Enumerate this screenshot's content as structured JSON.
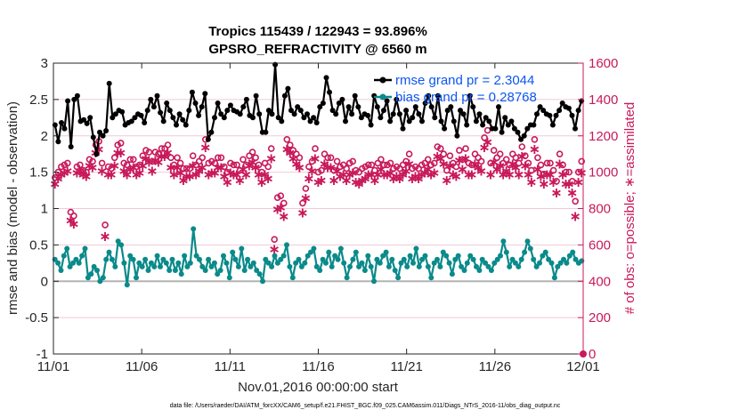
{
  "chart_data": {
    "type": "line",
    "title_line1": "Tropics 115439 / 122943 = 93.896%",
    "title_line2": "GPSRO_REFRACTIVITY @ 6560 m",
    "xlabel": "Nov.01,2016 00:00:00 start",
    "ylabel_left": "rmse and bias (model - observation)",
    "ylabel_right": "# of obs: o=possible; ∗=assimilated",
    "footnote": "data file: /Users/raeder/DAI/ATM_forcXX/CAM6_setup/f.e21.FHIST_BGC.f09_025.CAM6assim.011/Diags_NTrS_2016-11/obs_diag_output.nc",
    "xlim": [
      0,
      30
    ],
    "ylim_left": [
      -1,
      3
    ],
    "ylim_right": [
      0,
      1600
    ],
    "x_tick_labels": [
      {
        "x": 0,
        "label": "11/01"
      },
      {
        "x": 5,
        "label": "11/06"
      },
      {
        "x": 10,
        "label": "11/11"
      },
      {
        "x": 15,
        "label": "11/16"
      },
      {
        "x": 20,
        "label": "11/21"
      },
      {
        "x": 25,
        "label": "11/26"
      },
      {
        "x": 30,
        "label": "12/01"
      }
    ],
    "y_left_ticks": [
      "-1",
      "-0.5",
      "0",
      "0.5",
      "1",
      "1.5",
      "2",
      "2.5",
      "3"
    ],
    "y_right_ticks": [
      "0",
      "200",
      "400",
      "600",
      "800",
      "1000",
      "1200",
      "1400",
      "1600"
    ],
    "legend": [
      {
        "name": "rmse",
        "label": "rmse grand pr = 2.3044",
        "color": "#000000"
      },
      {
        "name": "bias",
        "label": "bias grand pr = 0.28768",
        "color": "#0a8a8a"
      }
    ],
    "series": [
      {
        "name": "rmse",
        "axis": "left",
        "color": "#000000",
        "values": [
          2.15,
          1.92,
          2.18,
          2.1,
          2.48,
          1.85,
          2.5,
          2.55,
          2.2,
          2.22,
          2.17,
          2.25,
          1.98,
          1.75,
          2.05,
          2.0,
          2.07,
          2.72,
          2.25,
          2.3,
          2.35,
          2.33,
          2.15,
          2.18,
          2.2,
          2.25,
          2.3,
          2.28,
          2.18,
          2.35,
          2.5,
          2.4,
          2.55,
          2.32,
          2.2,
          2.45,
          2.35,
          2.25,
          2.15,
          2.3,
          2.22,
          2.15,
          2.35,
          2.6,
          2.45,
          2.28,
          2.4,
          2.58,
          1.95,
          2.05,
          2.25,
          2.45,
          2.3,
          2.25,
          2.35,
          2.42,
          2.35,
          2.33,
          2.3,
          2.4,
          2.5,
          2.28,
          2.25,
          2.55,
          2.3,
          2.05,
          2.05,
          2.35,
          2.3,
          2.98,
          2.25,
          2.2,
          2.55,
          2.65,
          2.35,
          2.3,
          2.4,
          2.35,
          2.25,
          2.3,
          2.2,
          2.25,
          2.18,
          2.4,
          2.45,
          2.8,
          2.6,
          2.35,
          2.3,
          2.45,
          2.5,
          2.2,
          2.4,
          2.3,
          2.55,
          2.4,
          2.25,
          2.3,
          2.28,
          2.15,
          2.55,
          2.4,
          2.25,
          2.35,
          2.48,
          2.2,
          2.3,
          2.5,
          2.3,
          2.1,
          2.35,
          2.2,
          2.25,
          2.4,
          2.3,
          2.2,
          2.45,
          2.55,
          2.4,
          2.25,
          2.55,
          2.2,
          2.1,
          2.35,
          2.4,
          2.2,
          2.0,
          2.35,
          2.3,
          2.15,
          2.55,
          2.4,
          2.2,
          2.3,
          2.15,
          2.25,
          2.2,
          2.1,
          2.1,
          2.4,
          2.05,
          2.25,
          2.15,
          2.2,
          2.1,
          2.05,
          1.95,
          2.0,
          2.1,
          2.15,
          2.15,
          2.3,
          2.4,
          2.35,
          2.3,
          2.28,
          2.15,
          2.28,
          2.35,
          2.45,
          2.4,
          2.38,
          2.28,
          2.1,
          2.35,
          2.48
        ]
      },
      {
        "name": "bias",
        "axis": "left",
        "color": "#0a8a8a",
        "values": [
          0.3,
          0.25,
          0.15,
          0.35,
          0.45,
          0.2,
          0.25,
          0.3,
          0.25,
          0.35,
          0.45,
          0.05,
          0.1,
          0.2,
          0.15,
          0.0,
          0.05,
          0.3,
          0.4,
          0.3,
          0.2,
          0.55,
          0.5,
          0.25,
          -0.05,
          0.35,
          0.3,
          0.05,
          0.25,
          0.2,
          0.3,
          0.15,
          0.25,
          0.2,
          0.35,
          0.2,
          0.3,
          0.25,
          0.15,
          0.3,
          0.15,
          0.25,
          0.1,
          0.35,
          0.2,
          0.25,
          0.72,
          0.35,
          0.3,
          0.2,
          0.15,
          0.3,
          0.2,
          0.25,
          0.1,
          0.15,
          0.35,
          0.25,
          0.05,
          0.4,
          0.3,
          0.2,
          0.45,
          0.15,
          0.3,
          0.2,
          0.25,
          0.15,
          0.1,
          0.0,
          0.3,
          0.25,
          0.2,
          0.35,
          0.25,
          0.3,
          0.35,
          0.5,
          0.2,
          0.05,
          0.25,
          0.3,
          0.2,
          0.25,
          0.35,
          0.4,
          0.45,
          0.2,
          0.15,
          0.3,
          0.25,
          0.4,
          0.2,
          0.35,
          0.3,
          0.45,
          0.25,
          0.05,
          0.2,
          0.3,
          0.4,
          0.2,
          0.25,
          0.15,
          0.35,
          0.2,
          0.0,
          0.3,
          0.25,
          0.35,
          0.4,
          0.2,
          0.3,
          0.15,
          0.05,
          0.25,
          0.3,
          0.2,
          0.35,
          0.25,
          0.45,
          0.2,
          0.3,
          0.35,
          0.2,
          0.05,
          0.25,
          0.3,
          0.2,
          0.4,
          0.35,
          0.25,
          0.1,
          0.3,
          0.35,
          0.2,
          0.15,
          0.25,
          0.35,
          0.3,
          0.2,
          0.15,
          0.3,
          0.25,
          0.2,
          0.15,
          0.25,
          0.3,
          0.35,
          0.55,
          0.4,
          0.2,
          0.3,
          0.25,
          0.2,
          0.3,
          0.4,
          0.55,
          0.45,
          0.3,
          0.2,
          0.25,
          0.35,
          0.4,
          0.3,
          0.25,
          0.05,
          0.2,
          0.25,
          0.3,
          0.25,
          0.35,
          0.4,
          0.3,
          0.25,
          0.28
        ]
      },
      {
        "name": "obs_possible",
        "axis": "right",
        "marker": "o",
        "color": "#c8195a",
        "values": [
          970,
          1000,
          1030,
          1040,
          1050,
          780,
          760,
          1030,
          1040,
          1010,
          1000,
          1070,
          1060,
          1150,
          1170,
          1050,
          710,
          1030,
          1020,
          1080,
          1150,
          1160,
          1050,
          1040,
          1070,
          1070,
          1030,
          1040,
          1090,
          1120,
          1110,
          1060,
          1110,
          1100,
          1130,
          1130,
          1150,
          1080,
          1040,
          1080,
          1050,
          1020,
          1020,
          1020,
          1090,
          1040,
          1060,
          1080,
          1180,
          1050,
          1060,
          1050,
          1080,
          1080,
          1030,
          1000,
          1050,
          1040,
          1040,
          1010,
          1070,
          1040,
          1090,
          1110,
          1080,
          1040,
          1000,
          1050,
          1030,
          1130,
          630,
          860,
          870,
          830,
          1180,
          1150,
          1120,
          1100,
          1080,
          830,
          910,
          1030,
          1060,
          1130,
          1000,
          1010,
          1100,
          1080,
          1080,
          1010,
          1060,
          1030,
          1040,
          1020,
          1050,
          1060,
          1010,
          1000,
          1020,
          1030,
          1040,
          1040,
          1010,
          1050,
          1070,
          1040,
          1040,
          1050,
          1020,
          1030,
          1020,
          1040,
          1060,
          1100,
          1020,
          1030,
          1020,
          1040,
          1050,
          1070,
          1040,
          1050,
          1140,
          1130,
          1100,
          1010,
          1090,
          1050,
          1030,
          1120,
          1070,
          1130,
          1050,
          1040,
          1100,
          1080,
          1060,
          1190,
          1230,
          1050,
          1120,
          1080,
          1100,
          1050,
          1070,
          1040,
          1100,
          1080,
          1050,
          1140,
          1090,
          1050,
          1010,
          1180,
          1080,
          1040,
          990,
          1050,
          1050,
          1010,
          950,
          1100,
          1040,
          1000,
          1000,
          950,
          840,
          1000,
          1060
        ]
      },
      {
        "name": "obs_assimilated",
        "axis": "right",
        "marker": "*",
        "color": "#c8195a",
        "values": [
          940,
          970,
          990,
          1000,
          1010,
          740,
          720,
          1000,
          1010,
          990,
          980,
          1040,
          1030,
          1110,
          1130,
          1010,
          650,
          990,
          990,
          1040,
          1110,
          1110,
          1010,
          990,
          1020,
          1030,
          990,
          1000,
          1040,
          1080,
          1060,
          1010,
          1070,
          1060,
          1090,
          1090,
          1110,
          1030,
          990,
          1030,
          1000,
          960,
          980,
          980,
          1040,
          990,
          1010,
          1030,
          1140,
          990,
          1000,
          1000,
          1030,
          1030,
          980,
          950,
          1000,
          990,
          990,
          960,
          1020,
          990,
          1040,
          1060,
          1030,
          990,
          950,
          990,
          970,
          1080,
          580,
          800,
          810,
          760,
          1130,
          1110,
          1080,
          1050,
          1030,
          780,
          860,
          970,
          1010,
          1080,
          950,
          960,
          1050,
          1030,
          1030,
          960,
          1010,
          980,
          990,
          960,
          990,
          1000,
          950,
          940,
          960,
          970,
          990,
          990,
          960,
          990,
          1020,
          990,
          990,
          1000,
          970,
          980,
          970,
          990,
          1010,
          1050,
          970,
          980,
          970,
          990,
          1000,
          1020,
          990,
          1000,
          1090,
          1080,
          1050,
          960,
          1040,
          990,
          980,
          1070,
          1020,
          1080,
          990,
          990,
          1050,
          1030,
          1010,
          1140,
          1170,
          990,
          1060,
          1020,
          1040,
          990,
          1010,
          990,
          1050,
          1030,
          990,
          1090,
          1040,
          990,
          950,
          1130,
          1020,
          980,
          940,
          990,
          990,
          950,
          890,
          1050,
          990,
          940,
          940,
          890,
          760,
          950,
          1000
        ]
      }
    ]
  }
}
